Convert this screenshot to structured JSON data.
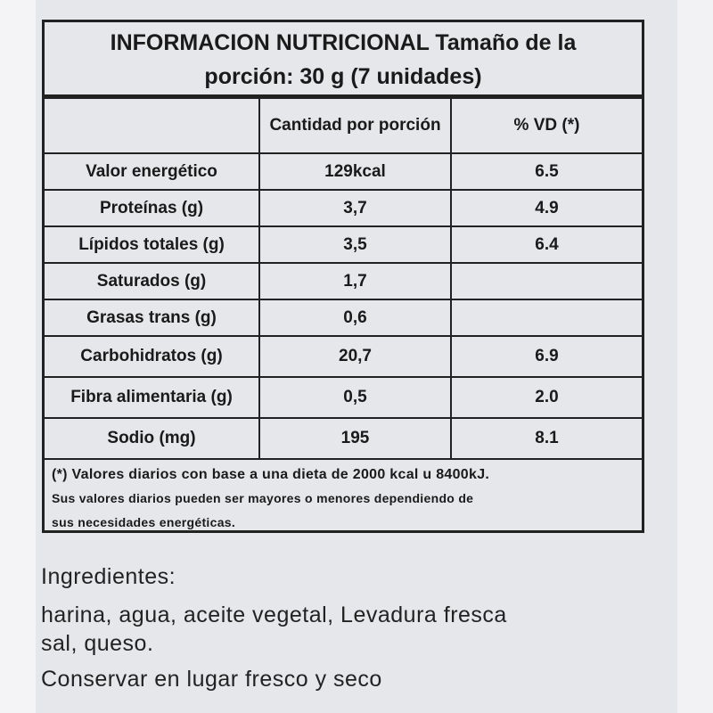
{
  "title": {
    "line1": "INFORMACION NUTRICIONAL Tamaño de la",
    "line2": "porción: 30 g (7 unidades)"
  },
  "headers": [
    "",
    "Cantidad por porción",
    "% VD (*)"
  ],
  "rows": [
    [
      "Valor energético",
      "129kcal",
      "6.5"
    ],
    [
      "Proteínas (g)",
      "3,7",
      "4.9"
    ],
    [
      "Lípidos totales (g)",
      "3,5",
      "6.4"
    ],
    [
      "Saturados (g)",
      "1,7",
      ""
    ],
    [
      "Grasas trans (g)",
      "0,6",
      ""
    ],
    [
      "Carbohidratos (g)",
      "20,7",
      "6.9"
    ],
    [
      "Fibra alimentaria (g)",
      "0,5",
      "2.0"
    ],
    [
      "Sodio (mg)",
      "195",
      "8.1"
    ]
  ],
  "footnote": [
    "(*) Valores diarios con base a una dieta de 2000 kcal u 8400kJ.",
    "Sus valores diarios pueden ser mayores o menores dependiendo de",
    "sus necesidades energéticas."
  ],
  "ingredients": {
    "heading": "Ingredientes:",
    "line1": "harina, agua, aceite vegetal, Levadura fresca",
    "line2": "sal, queso.",
    "storage": "Conservar en lugar fresco y seco"
  }
}
